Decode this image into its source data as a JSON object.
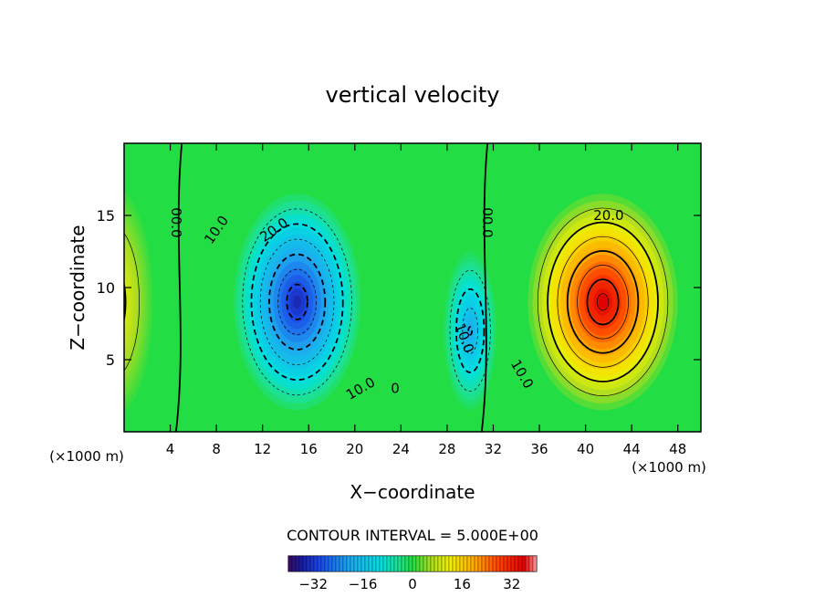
{
  "chart_data": {
    "type": "heatmap",
    "title": "vertical velocity",
    "xlabel": "X−coordinate",
    "ylabel": "Z−coordinate",
    "x_unit": "(×1000 m)",
    "y_unit": "(×1000 m)",
    "xlim": [
      0,
      50
    ],
    "ylim": [
      0,
      20
    ],
    "x_ticks": [
      4,
      8,
      12,
      16,
      20,
      24,
      28,
      32,
      36,
      40,
      44,
      48
    ],
    "x_tick_labels": [
      "4",
      "8",
      "12",
      "16",
      "20",
      "24",
      "28",
      "32",
      "36",
      "40",
      "44",
      "48"
    ],
    "y_ticks": [
      5,
      10,
      15
    ],
    "y_tick_labels": [
      "5",
      "10",
      "15"
    ],
    "contour_interval_text": "CONTOUR INTERVAL = 5.000E+00",
    "color_range": [
      -40,
      40
    ],
    "colorbar_ticks": [
      -32,
      -16,
      0,
      16,
      32
    ],
    "colorbar_tick_labels": [
      "−32",
      "−16",
      "0",
      "16",
      "32"
    ],
    "cells": [
      {
        "x": 15,
        "z": 9,
        "rx": 5.5,
        "rz": 7.5,
        "amp": -34
      },
      {
        "x": 30,
        "z": 7,
        "rx": 2.3,
        "rz": 5.5,
        "amp": -20
      },
      {
        "x": 41.5,
        "z": 9,
        "rx": 6.5,
        "rz": 7.5,
        "amp": 36
      },
      {
        "x": -1,
        "z": 9,
        "rx": 3.5,
        "rz": 8,
        "amp": 14
      }
    ],
    "contour_labels": [
      {
        "text": "00.0",
        "x": 4.5,
        "z": 14.5,
        "rotate": 90
      },
      {
        "text": "10.0",
        "x": 8,
        "z": 14,
        "rotate": -55
      },
      {
        "text": "20.0",
        "x": 13,
        "z": 14,
        "rotate": -35
      },
      {
        "text": "10.0",
        "x": 20.5,
        "z": 3,
        "rotate": -30
      },
      {
        "text": "0",
        "x": 23.5,
        "z": 3,
        "rotate": 0
      },
      {
        "text": "10.0",
        "x": 29.5,
        "z": 6.5,
        "rotate": 70
      },
      {
        "text": "00.0",
        "x": 31.5,
        "z": 14.5,
        "rotate": 90
      },
      {
        "text": "20.0",
        "x": 42,
        "z": 15,
        "rotate": 0
      },
      {
        "text": "10.0",
        "x": 34.5,
        "z": 4,
        "rotate": 60
      }
    ]
  }
}
